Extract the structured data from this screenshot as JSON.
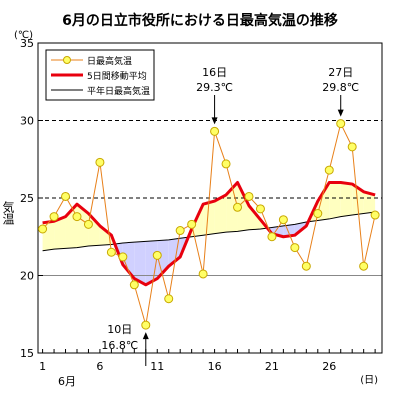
{
  "chart_data": {
    "type": "line",
    "title": "6月の日立市役所における日最高気温の推移",
    "ylabel": "気温",
    "yunit": "(℃)",
    "xunit": "(日)",
    "month_label": "6月",
    "ylim": [
      15,
      35
    ],
    "yticks": [
      15,
      20,
      25,
      30,
      35
    ],
    "xticks": [
      1,
      6,
      11,
      16,
      21,
      26
    ],
    "grid": "dashed horizontal at 25 and 30",
    "legend_position": "top-left",
    "x": [
      1,
      2,
      3,
      4,
      5,
      6,
      7,
      8,
      9,
      10,
      11,
      12,
      13,
      14,
      15,
      16,
      17,
      18,
      19,
      20,
      21,
      22,
      23,
      24,
      25,
      26,
      27,
      28,
      29,
      30
    ],
    "series": [
      {
        "name": "日最高気温",
        "color": "#e8801a",
        "marker_color": "#ffff66",
        "values": [
          23.0,
          23.8,
          25.1,
          23.8,
          23.3,
          27.3,
          21.5,
          21.2,
          19.4,
          16.8,
          21.3,
          18.5,
          22.9,
          23.3,
          20.1,
          29.3,
          27.2,
          24.4,
          25.1,
          24.3,
          22.5,
          23.6,
          21.8,
          20.6,
          24.0,
          26.8,
          29.8,
          28.3,
          20.6,
          23.9
        ]
      },
      {
        "name": "5日間移動平均",
        "color": "#e8000e",
        "values": [
          23.4,
          23.5,
          23.8,
          24.6,
          24.0,
          23.2,
          22.6,
          20.7,
          19.8,
          19.4,
          19.8,
          20.6,
          21.2,
          23.0,
          24.6,
          24.8,
          25.2,
          26.0,
          24.5,
          23.6,
          22.7,
          22.5,
          22.6,
          23.2,
          24.8,
          26.0,
          26.0,
          25.9,
          25.4,
          25.2
        ]
      },
      {
        "name": "平年日最高気温",
        "color": "#000000",
        "values": [
          21.6,
          21.7,
          21.75,
          21.8,
          21.9,
          21.95,
          22.0,
          22.1,
          22.15,
          22.2,
          22.25,
          22.3,
          22.4,
          22.5,
          22.6,
          22.7,
          22.8,
          22.85,
          22.95,
          23.0,
          23.1,
          23.2,
          23.3,
          23.45,
          23.55,
          23.65,
          23.8,
          23.9,
          24.0,
          24.1
        ]
      }
    ],
    "annotations": [
      {
        "day": 10,
        "line1": "10日",
        "line2": "16.8℃"
      },
      {
        "day": 16,
        "line1": "16日",
        "line2": "29.3℃"
      },
      {
        "day": 27,
        "line1": "27日",
        "line2": "29.8℃"
      }
    ],
    "fill_above_color": "#ffffc0",
    "fill_below_color": "#d0d0ff"
  }
}
